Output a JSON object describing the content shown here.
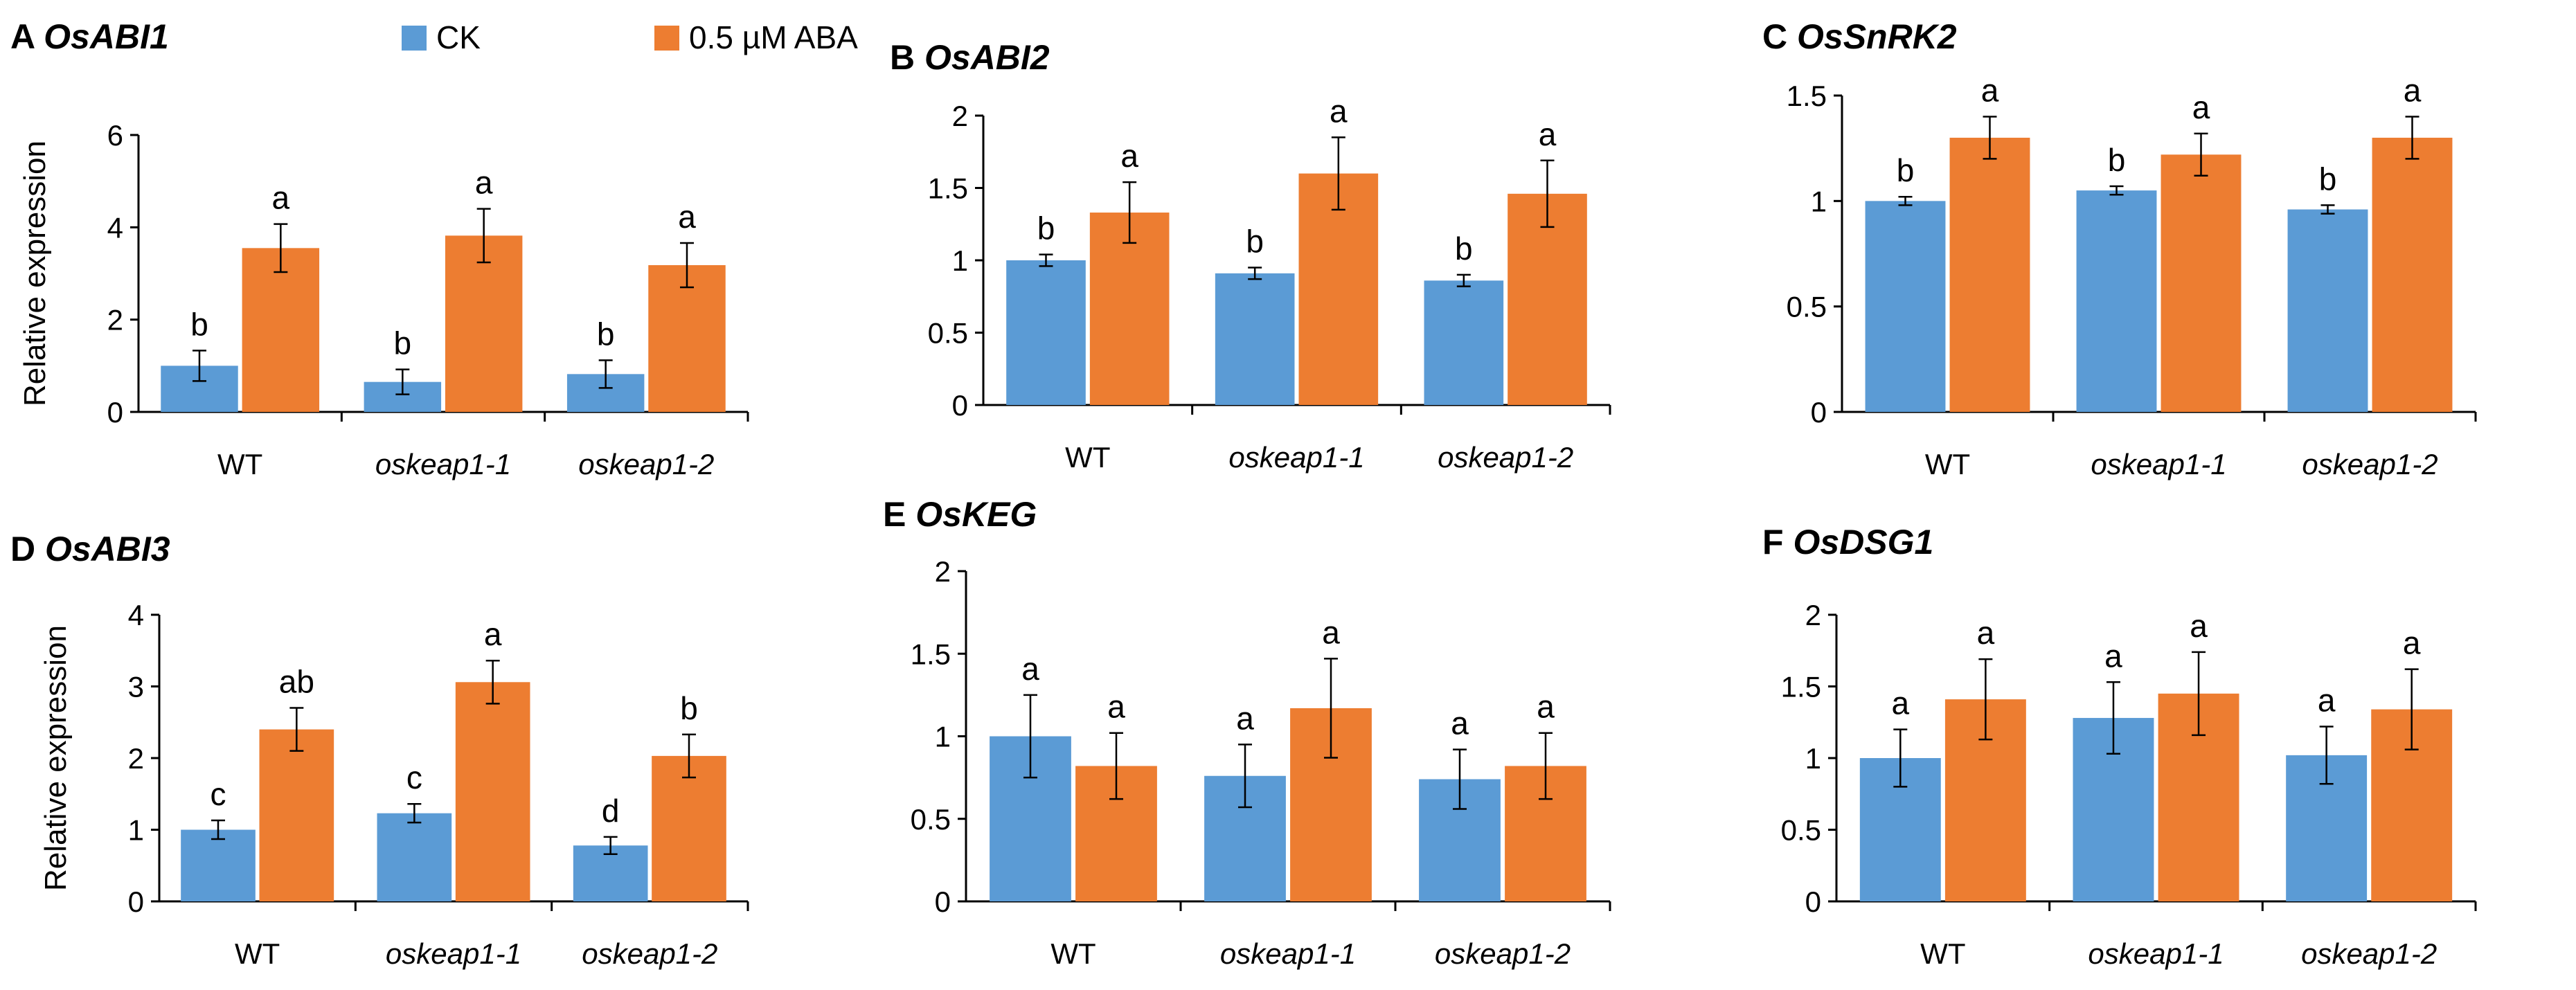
{
  "legend": {
    "entries": [
      {
        "name": "CK",
        "color": "#5B9BD5"
      },
      {
        "name": "0.5 µM ABA",
        "color": "#ED7D31"
      }
    ]
  },
  "chart_data": [
    {
      "type": "bar",
      "panel": "A",
      "title": "OsABI1",
      "ylabel": "Relative expression",
      "xlabel": "",
      "ylim": [
        0,
        6
      ],
      "yticks": [
        "0",
        "2",
        "4",
        "6"
      ],
      "categories": [
        "WT",
        "oskeap1-1",
        "oskeap1-2"
      ],
      "series": [
        {
          "name": "CK",
          "values": [
            1.0,
            0.65,
            0.82
          ],
          "errors": [
            0.33,
            0.27,
            0.3
          ],
          "labels": [
            "b",
            "b",
            "b"
          ]
        },
        {
          "name": "0.5 µM ABA",
          "values": [
            3.55,
            3.82,
            3.18
          ],
          "errors": [
            0.52,
            0.58,
            0.48
          ],
          "labels": [
            "a",
            "a",
            "a"
          ]
        }
      ]
    },
    {
      "type": "bar",
      "panel": "B",
      "title": "OsABI2",
      "ylabel": "",
      "xlabel": "",
      "ylim": [
        0,
        2
      ],
      "yticks": [
        "0",
        "0.5",
        "1",
        "1.5",
        "2"
      ],
      "categories": [
        "WT",
        "oskeap1-1",
        "oskeap1-2"
      ],
      "series": [
        {
          "name": "CK",
          "values": [
            1.0,
            0.91,
            0.86
          ],
          "errors": [
            0.04,
            0.04,
            0.04
          ],
          "labels": [
            "b",
            "b",
            "b"
          ]
        },
        {
          "name": "0.5 µM ABA",
          "values": [
            1.33,
            1.6,
            1.46
          ],
          "errors": [
            0.21,
            0.25,
            0.23
          ],
          "labels": [
            "a",
            "a",
            "a"
          ]
        }
      ]
    },
    {
      "type": "bar",
      "panel": "C",
      "title": "OsSnRK2",
      "ylabel": "",
      "xlabel": "",
      "ylim": [
        0,
        1.5
      ],
      "yticks": [
        "0",
        "0.5",
        "1",
        "1.5"
      ],
      "categories": [
        "WT",
        "oskeap1-1",
        "oskeap1-2"
      ],
      "series": [
        {
          "name": "CK",
          "values": [
            1.0,
            1.05,
            0.96
          ],
          "errors": [
            0.02,
            0.02,
            0.02
          ],
          "labels": [
            "b",
            "b",
            "b"
          ]
        },
        {
          "name": "0.5 µM ABA",
          "values": [
            1.3,
            1.22,
            1.3
          ],
          "errors": [
            0.1,
            0.1,
            0.1
          ],
          "labels": [
            "a",
            "a",
            "a"
          ]
        }
      ]
    },
    {
      "type": "bar",
      "panel": "D",
      "title": "OsABI3",
      "ylabel": "Relative expression",
      "xlabel": "",
      "ylim": [
        0,
        4
      ],
      "yticks": [
        "0",
        "1",
        "2",
        "3",
        "4"
      ],
      "categories": [
        "WT",
        "oskeap1-1",
        "oskeap1-2"
      ],
      "series": [
        {
          "name": "CK",
          "values": [
            1.0,
            1.23,
            0.78
          ],
          "errors": [
            0.13,
            0.13,
            0.12
          ],
          "labels": [
            "c",
            "c",
            "d"
          ]
        },
        {
          "name": "0.5 µM ABA",
          "values": [
            2.4,
            3.06,
            2.03
          ],
          "errors": [
            0.3,
            0.3,
            0.3
          ],
          "labels": [
            "ab",
            "a",
            "b"
          ]
        }
      ]
    },
    {
      "type": "bar",
      "panel": "E",
      "title": "OsKEG",
      "ylabel": "",
      "xlabel": "",
      "ylim": [
        0,
        2
      ],
      "yticks": [
        "0",
        "0.5",
        "1",
        "1.5",
        "2"
      ],
      "categories": [
        "WT",
        "oskeap1-1",
        "oskeap1-2"
      ],
      "series": [
        {
          "name": "CK",
          "values": [
            1.0,
            0.76,
            0.74
          ],
          "errors": [
            0.25,
            0.19,
            0.18
          ],
          "labels": [
            "a",
            "a",
            "a"
          ]
        },
        {
          "name": "0.5 µM ABA",
          "values": [
            0.82,
            1.17,
            0.82
          ],
          "errors": [
            0.2,
            0.3,
            0.2
          ],
          "labels": [
            "a",
            "a",
            "a"
          ]
        }
      ]
    },
    {
      "type": "bar",
      "panel": "F",
      "title": "OsDSG1",
      "ylabel": "",
      "xlabel": "",
      "ylim": [
        0,
        2
      ],
      "yticks": [
        "0",
        "0.5",
        "1",
        "1.5",
        "2"
      ],
      "categories": [
        "WT",
        "oskeap1-1",
        "oskeap1-2"
      ],
      "series": [
        {
          "name": "CK",
          "values": [
            1.0,
            1.28,
            1.02
          ],
          "errors": [
            0.2,
            0.25,
            0.2
          ],
          "labels": [
            "a",
            "a",
            "a"
          ]
        },
        {
          "name": "0.5 µM ABA",
          "values": [
            1.41,
            1.45,
            1.34
          ],
          "errors": [
            0.28,
            0.29,
            0.28
          ],
          "labels": [
            "a",
            "a",
            "a"
          ]
        }
      ]
    }
  ]
}
